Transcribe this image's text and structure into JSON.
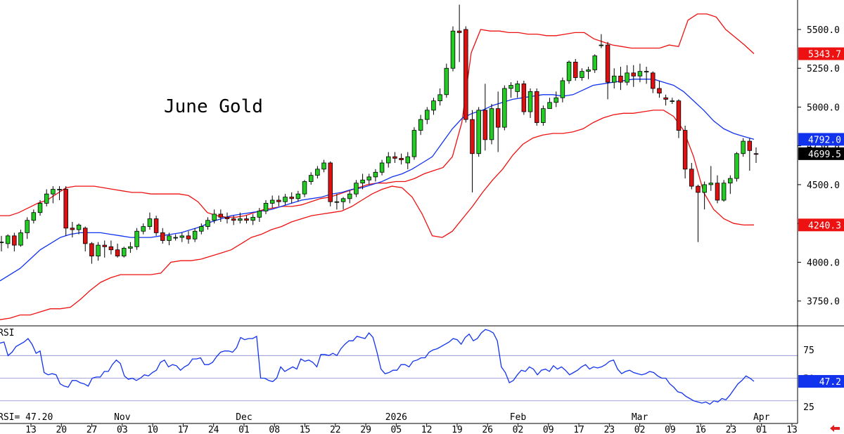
{
  "chart_data": {
    "type": "candlestick",
    "title": "June Gold",
    "price_axis": {
      "ticks": [
        3750,
        4000,
        4250,
        4500,
        4750,
        5000,
        5250,
        5500
      ],
      "tick_labels": [
        "3750.0",
        "4000.0",
        "4250.0",
        "4500.0",
        "4750.0",
        "5000.0",
        "5250.0",
        "5500.0"
      ],
      "range": [
        3590,
        5690
      ],
      "last_value_tags": [
        {
          "label": "5343.7",
          "value": 5343.7,
          "color": "#ee1111"
        },
        {
          "label": "4792.0",
          "value": 4792.0,
          "color": "#1133ee"
        },
        {
          "label": "4699.5",
          "value": 4699.5,
          "color": "#000000"
        },
        {
          "label": "4240.3",
          "value": 4240.3,
          "color": "#ee1111"
        }
      ]
    },
    "x_axis": {
      "tick_labels": [
        "13",
        "20",
        "27",
        "03",
        "10",
        "17",
        "24",
        "01",
        "08",
        "15",
        "22",
        "29",
        "05",
        "12",
        "19",
        "26",
        "02",
        "09",
        "17",
        "23",
        "02",
        "09",
        "16",
        "23",
        "01",
        "13"
      ],
      "month_labels": [
        {
          "label": "Nov",
          "at": 3
        },
        {
          "label": "Dec",
          "at": 7
        },
        {
          "label": "2026",
          "at": 12
        },
        {
          "label": "Feb",
          "at": 16
        },
        {
          "label": "Mar",
          "at": 20
        },
        {
          "label": "Apr",
          "at": 24
        }
      ]
    },
    "candles": [
      {
        "o": 4130,
        "h": 4170,
        "l": 4070,
        "c": 4130
      },
      {
        "o": 4120,
        "h": 4180,
        "l": 4090,
        "c": 4170
      },
      {
        "o": 4170,
        "h": 4190,
        "l": 4070,
        "c": 4110
      },
      {
        "o": 4110,
        "h": 4210,
        "l": 4100,
        "c": 4190
      },
      {
        "o": 4190,
        "h": 4290,
        "l": 4150,
        "c": 4270
      },
      {
        "o": 4270,
        "h": 4340,
        "l": 4250,
        "c": 4320
      },
      {
        "o": 4320,
        "h": 4400,
        "l": 4300,
        "c": 4380
      },
      {
        "o": 4380,
        "h": 4470,
        "l": 4360,
        "c": 4440
      },
      {
        "o": 4440,
        "h": 4490,
        "l": 4380,
        "c": 4470
      },
      {
        "o": 4470,
        "h": 4490,
        "l": 4400,
        "c": 4470
      },
      {
        "o": 4470,
        "h": 4490,
        "l": 4170,
        "c": 4220
      },
      {
        "o": 4220,
        "h": 4260,
        "l": 4160,
        "c": 4210
      },
      {
        "o": 4210,
        "h": 4250,
        "l": 4180,
        "c": 4240
      },
      {
        "o": 4220,
        "h": 4230,
        "l": 4070,
        "c": 4120
      },
      {
        "o": 4120,
        "h": 4130,
        "l": 3990,
        "c": 4040
      },
      {
        "o": 4040,
        "h": 4130,
        "l": 4010,
        "c": 4110
      },
      {
        "o": 4110,
        "h": 4140,
        "l": 4030,
        "c": 4100
      },
      {
        "o": 4100,
        "h": 4140,
        "l": 4050,
        "c": 4080
      },
      {
        "o": 4080,
        "h": 4120,
        "l": 4030,
        "c": 4040
      },
      {
        "o": 4040,
        "h": 4100,
        "l": 4030,
        "c": 4090
      },
      {
        "o": 4090,
        "h": 4130,
        "l": 4060,
        "c": 4100
      },
      {
        "o": 4100,
        "h": 4220,
        "l": 4080,
        "c": 4200
      },
      {
        "o": 4200,
        "h": 4250,
        "l": 4180,
        "c": 4230
      },
      {
        "o": 4230,
        "h": 4320,
        "l": 4210,
        "c": 4280
      },
      {
        "o": 4280,
        "h": 4300,
        "l": 4170,
        "c": 4190
      },
      {
        "o": 4190,
        "h": 4220,
        "l": 4120,
        "c": 4140
      },
      {
        "o": 4140,
        "h": 4190,
        "l": 4110,
        "c": 4170
      },
      {
        "o": 4160,
        "h": 4180,
        "l": 4140,
        "c": 4160
      },
      {
        "o": 4160,
        "h": 4190,
        "l": 4130,
        "c": 4170
      },
      {
        "o": 4170,
        "h": 4200,
        "l": 4120,
        "c": 4150
      },
      {
        "o": 4150,
        "h": 4220,
        "l": 4130,
        "c": 4200
      },
      {
        "o": 4200,
        "h": 4250,
        "l": 4180,
        "c": 4230
      },
      {
        "o": 4230,
        "h": 4290,
        "l": 4210,
        "c": 4270
      },
      {
        "o": 4270,
        "h": 4340,
        "l": 4250,
        "c": 4310
      },
      {
        "o": 4310,
        "h": 4340,
        "l": 4260,
        "c": 4290
      },
      {
        "o": 4290,
        "h": 4320,
        "l": 4250,
        "c": 4280
      },
      {
        "o": 4280,
        "h": 4300,
        "l": 4240,
        "c": 4270
      },
      {
        "o": 4270,
        "h": 4320,
        "l": 4250,
        "c": 4280
      },
      {
        "o": 4280,
        "h": 4300,
        "l": 4250,
        "c": 4270
      },
      {
        "o": 4270,
        "h": 4310,
        "l": 4240,
        "c": 4290
      },
      {
        "o": 4290,
        "h": 4350,
        "l": 4260,
        "c": 4330
      },
      {
        "o": 4330,
        "h": 4400,
        "l": 4310,
        "c": 4380
      },
      {
        "o": 4380,
        "h": 4430,
        "l": 4350,
        "c": 4400
      },
      {
        "o": 4400,
        "h": 4430,
        "l": 4360,
        "c": 4390
      },
      {
        "o": 4390,
        "h": 4440,
        "l": 4370,
        "c": 4420
      },
      {
        "o": 4420,
        "h": 4450,
        "l": 4380,
        "c": 4410
      },
      {
        "o": 4410,
        "h": 4460,
        "l": 4390,
        "c": 4440
      },
      {
        "o": 4440,
        "h": 4530,
        "l": 4420,
        "c": 4520
      },
      {
        "o": 4520,
        "h": 4580,
        "l": 4500,
        "c": 4560
      },
      {
        "o": 4560,
        "h": 4620,
        "l": 4540,
        "c": 4600
      },
      {
        "o": 4600,
        "h": 4660,
        "l": 4580,
        "c": 4640
      },
      {
        "o": 4640,
        "h": 4650,
        "l": 4360,
        "c": 4390
      },
      {
        "o": 4390,
        "h": 4440,
        "l": 4340,
        "c": 4390
      },
      {
        "o": 4390,
        "h": 4420,
        "l": 4340,
        "c": 4410
      },
      {
        "o": 4410,
        "h": 4460,
        "l": 4380,
        "c": 4440
      },
      {
        "o": 4440,
        "h": 4530,
        "l": 4420,
        "c": 4510
      },
      {
        "o": 4510,
        "h": 4570,
        "l": 4470,
        "c": 4530
      },
      {
        "o": 4530,
        "h": 4570,
        "l": 4500,
        "c": 4550
      },
      {
        "o": 4550,
        "h": 4600,
        "l": 4520,
        "c": 4580
      },
      {
        "o": 4580,
        "h": 4660,
        "l": 4560,
        "c": 4640
      },
      {
        "o": 4640,
        "h": 4710,
        "l": 4610,
        "c": 4680
      },
      {
        "o": 4680,
        "h": 4710,
        "l": 4640,
        "c": 4670
      },
      {
        "o": 4670,
        "h": 4700,
        "l": 4630,
        "c": 4660
      },
      {
        "o": 4640,
        "h": 4710,
        "l": 4600,
        "c": 4680
      },
      {
        "o": 4680,
        "h": 4870,
        "l": 4660,
        "c": 4850
      },
      {
        "o": 4850,
        "h": 4950,
        "l": 4820,
        "c": 4920
      },
      {
        "o": 4920,
        "h": 5000,
        "l": 4890,
        "c": 4980
      },
      {
        "o": 4980,
        "h": 5060,
        "l": 4950,
        "c": 5040
      },
      {
        "o": 5040,
        "h": 5120,
        "l": 5010,
        "c": 5080
      },
      {
        "o": 5080,
        "h": 5280,
        "l": 5060,
        "c": 5250
      },
      {
        "o": 5250,
        "h": 5520,
        "l": 5230,
        "c": 5490
      },
      {
        "o": 5490,
        "h": 5660,
        "l": 5290,
        "c": 5480
      },
      {
        "o": 5500,
        "h": 5520,
        "l": 4900,
        "c": 4920
      },
      {
        "o": 4920,
        "h": 4980,
        "l": 4450,
        "c": 4700
      },
      {
        "o": 4700,
        "h": 5000,
        "l": 4680,
        "c": 4980
      },
      {
        "o": 4980,
        "h": 5150,
        "l": 4720,
        "c": 4790
      },
      {
        "o": 4790,
        "h": 5020,
        "l": 4760,
        "c": 4990
      },
      {
        "o": 4990,
        "h": 5100,
        "l": 4710,
        "c": 4870
      },
      {
        "o": 4870,
        "h": 5140,
        "l": 4850,
        "c": 5120
      },
      {
        "o": 5120,
        "h": 5160,
        "l": 5060,
        "c": 5140
      },
      {
        "o": 5100,
        "h": 5170,
        "l": 5060,
        "c": 5150
      },
      {
        "o": 5150,
        "h": 5170,
        "l": 4950,
        "c": 4970
      },
      {
        "o": 4970,
        "h": 5120,
        "l": 4930,
        "c": 5100
      },
      {
        "o": 5100,
        "h": 5120,
        "l": 4880,
        "c": 4900
      },
      {
        "o": 4900,
        "h": 5010,
        "l": 4880,
        "c": 4990
      },
      {
        "o": 4990,
        "h": 5060,
        "l": 4990,
        "c": 5030
      },
      {
        "o": 5030,
        "h": 5100,
        "l": 5000,
        "c": 5060
      },
      {
        "o": 5060,
        "h": 5190,
        "l": 5030,
        "c": 5170
      },
      {
        "o": 5170,
        "h": 5300,
        "l": 5150,
        "c": 5290
      },
      {
        "o": 5290,
        "h": 5310,
        "l": 5170,
        "c": 5190
      },
      {
        "o": 5190,
        "h": 5250,
        "l": 5170,
        "c": 5230
      },
      {
        "o": 5230,
        "h": 5260,
        "l": 5180,
        "c": 5240
      },
      {
        "o": 5240,
        "h": 5340,
        "l": 5220,
        "c": 5330
      },
      {
        "o": 5400,
        "h": 5470,
        "l": 5380,
        "c": 5400
      },
      {
        "o": 5400,
        "h": 5420,
        "l": 5050,
        "c": 5160
      },
      {
        "o": 5160,
        "h": 5250,
        "l": 5120,
        "c": 5200
      },
      {
        "o": 5200,
        "h": 5260,
        "l": 5110,
        "c": 5160
      },
      {
        "o": 5160,
        "h": 5270,
        "l": 5140,
        "c": 5220
      },
      {
        "o": 5220,
        "h": 5270,
        "l": 5130,
        "c": 5200
      },
      {
        "o": 5200,
        "h": 5280,
        "l": 5160,
        "c": 5230
      },
      {
        "o": 5230,
        "h": 5260,
        "l": 5150,
        "c": 5230
      },
      {
        "o": 5220,
        "h": 5230,
        "l": 5090,
        "c": 5120
      },
      {
        "o": 5120,
        "h": 5170,
        "l": 5060,
        "c": 5090
      },
      {
        "o": 5060,
        "h": 5080,
        "l": 5010,
        "c": 5050
      },
      {
        "o": 5040,
        "h": 5060,
        "l": 5020,
        "c": 5040
      },
      {
        "o": 5040,
        "h": 5050,
        "l": 4800,
        "c": 4850
      },
      {
        "o": 4850,
        "h": 4880,
        "l": 4540,
        "c": 4600
      },
      {
        "o": 4600,
        "h": 4640,
        "l": 4470,
        "c": 4490
      },
      {
        "o": 4490,
        "h": 4500,
        "l": 4130,
        "c": 4450
      },
      {
        "o": 4450,
        "h": 4520,
        "l": 4340,
        "c": 4500
      },
      {
        "o": 4500,
        "h": 4620,
        "l": 4460,
        "c": 4510
      },
      {
        "o": 4510,
        "h": 4560,
        "l": 4380,
        "c": 4400
      },
      {
        "o": 4400,
        "h": 4530,
        "l": 4390,
        "c": 4510
      },
      {
        "o": 4510,
        "h": 4560,
        "l": 4440,
        "c": 4540
      },
      {
        "o": 4540,
        "h": 4710,
        "l": 4520,
        "c": 4700
      },
      {
        "o": 4700,
        "h": 4800,
        "l": 4680,
        "c": 4780
      },
      {
        "o": 4780,
        "h": 4800,
        "l": 4590,
        "c": 4720
      },
      {
        "o": 4700,
        "h": 4740,
        "l": 4640,
        "c": 4699.5
      }
    ],
    "series": [
      {
        "name": "",
        "color": "#ee1111",
        "values": [
          4300,
          4300,
          4320,
          4350,
          4380,
          4400,
          4440,
          4480,
          4490,
          4490,
          4490,
          4480,
          4470,
          4460,
          4450,
          4450,
          4440,
          4440,
          4440,
          4440,
          4430,
          4390,
          4320,
          4300,
          4290,
          4290,
          4300,
          4320,
          4340,
          4350,
          4360,
          4360,
          4370,
          4390,
          4410,
          4420,
          4440,
          4460,
          4480,
          4500,
          4510,
          4510,
          4520,
          4520,
          4540,
          4570,
          4590,
          4610,
          4680,
          4900,
          5350,
          5500,
          5490,
          5490,
          5480,
          5480,
          5470,
          5470,
          5460,
          5460,
          5470,
          5480,
          5480,
          5440,
          5420,
          5400,
          5390,
          5380,
          5380,
          5380,
          5380,
          5400,
          5390,
          5560,
          5600,
          5600,
          5580,
          5500,
          5450,
          5400,
          5343.7
        ]
      },
      {
        "name": "",
        "color": "#1133ee",
        "values": [
          3880,
          3920,
          3960,
          4020,
          4080,
          4120,
          4160,
          4180,
          4190,
          4190,
          4190,
          4180,
          4170,
          4160,
          4160,
          4160,
          4170,
          4180,
          4190,
          4210,
          4230,
          4260,
          4280,
          4300,
          4310,
          4320,
          4330,
          4340,
          4360,
          4380,
          4400,
          4410,
          4420,
          4440,
          4450,
          4470,
          4480,
          4500,
          4520,
          4550,
          4570,
          4600,
          4640,
          4680,
          4770,
          4860,
          4930,
          4960,
          4980,
          5010,
          5030,
          5050,
          5060,
          5070,
          5080,
          5080,
          5070,
          5080,
          5110,
          5140,
          5150,
          5160,
          5170,
          5180,
          5180,
          5180,
          5160,
          5140,
          5100,
          5040,
          4980,
          4910,
          4860,
          4830,
          4810,
          4792.0
        ]
      },
      {
        "name": "",
        "color": "#ee1111",
        "values": [
          3630,
          3640,
          3660,
          3660,
          3680,
          3700,
          3700,
          3710,
          3760,
          3820,
          3870,
          3900,
          3920,
          3920,
          3920,
          3920,
          3930,
          4000,
          4010,
          4010,
          4020,
          4040,
          4060,
          4080,
          4120,
          4160,
          4180,
          4210,
          4230,
          4260,
          4280,
          4300,
          4310,
          4320,
          4330,
          4360,
          4400,
          4440,
          4470,
          4490,
          4480,
          4420,
          4310,
          4170,
          4160,
          4200,
          4280,
          4360,
          4450,
          4530,
          4600,
          4690,
          4760,
          4800,
          4820,
          4830,
          4830,
          4840,
          4860,
          4900,
          4930,
          4950,
          4960,
          4960,
          4970,
          4980,
          4980,
          4940,
          4850,
          4680,
          4450,
          4340,
          4280,
          4250,
          4240,
          4240.3
        ]
      }
    ],
    "rsi": {
      "label": "RSI",
      "readout": "RSI=   47.20",
      "tag": "47.2",
      "ticks": [
        25,
        50,
        75
      ],
      "tick_labels": [
        "25",
        "50",
        "75"
      ],
      "range": [
        10,
        95
      ],
      "overbought": 70,
      "oversold": 30,
      "values": [
        81,
        82,
        70,
        73,
        78,
        80,
        82,
        85,
        80,
        72,
        74,
        55,
        53,
        54,
        53,
        45,
        43,
        42,
        48,
        48,
        46,
        45,
        43,
        50,
        51,
        51,
        56,
        56,
        62,
        66,
        63,
        52,
        49,
        50,
        48,
        50,
        53,
        52,
        55,
        57,
        64,
        66,
        60,
        62,
        61,
        57,
        60,
        62,
        67,
        67,
        68,
        62,
        62,
        64,
        69,
        73,
        74,
        74,
        73,
        77,
        86,
        84,
        85,
        85,
        87,
        50,
        50,
        48,
        47,
        50,
        60,
        56,
        58,
        60,
        58,
        67,
        65,
        66,
        64,
        60,
        71,
        71,
        70,
        72,
        70,
        76,
        80,
        83,
        83,
        87,
        86,
        85,
        90,
        86,
        73,
        58,
        54,
        55,
        57,
        57,
        62,
        62,
        60,
        65,
        66,
        68,
        68,
        73,
        75,
        76,
        78,
        80,
        82,
        85,
        84,
        80,
        86,
        89,
        83,
        85,
        90,
        93,
        92,
        90,
        83,
        60,
        55,
        46,
        48,
        53,
        57,
        56,
        60,
        58,
        53,
        57,
        58,
        56,
        61,
        58,
        60,
        57,
        53,
        55,
        57,
        60,
        62,
        58,
        60,
        59,
        60,
        62,
        65,
        66,
        58,
        54,
        56,
        57,
        55,
        54,
        53,
        54,
        56,
        55,
        52,
        50,
        50,
        45,
        42,
        38,
        37,
        34,
        32,
        30,
        29,
        28,
        29,
        27,
        30,
        29,
        32,
        31,
        35,
        40,
        45,
        48,
        52,
        50,
        47.2
      ]
    }
  }
}
